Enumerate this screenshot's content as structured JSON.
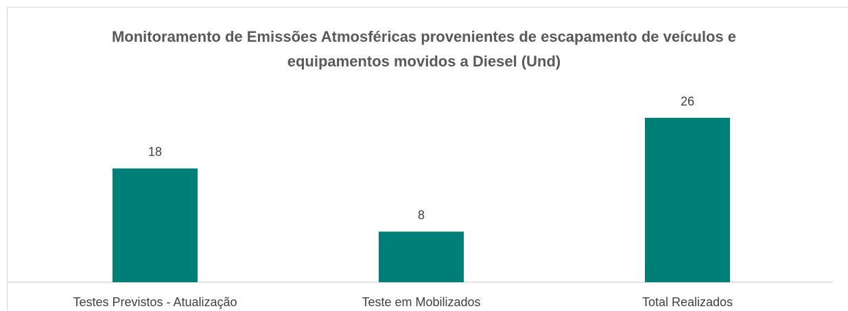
{
  "chart_data": {
    "type": "bar",
    "title": "Monitoramento de Emissões Atmosféricas provenientes de escapamento de veículos e equipamentos movidos a Diesel (Und)",
    "categories": [
      "Testes Previstos - Atualização",
      "Teste em Mobilizados",
      "Total Realizados"
    ],
    "values": [
      18,
      8,
      26
    ],
    "color": "#007f78"
  }
}
